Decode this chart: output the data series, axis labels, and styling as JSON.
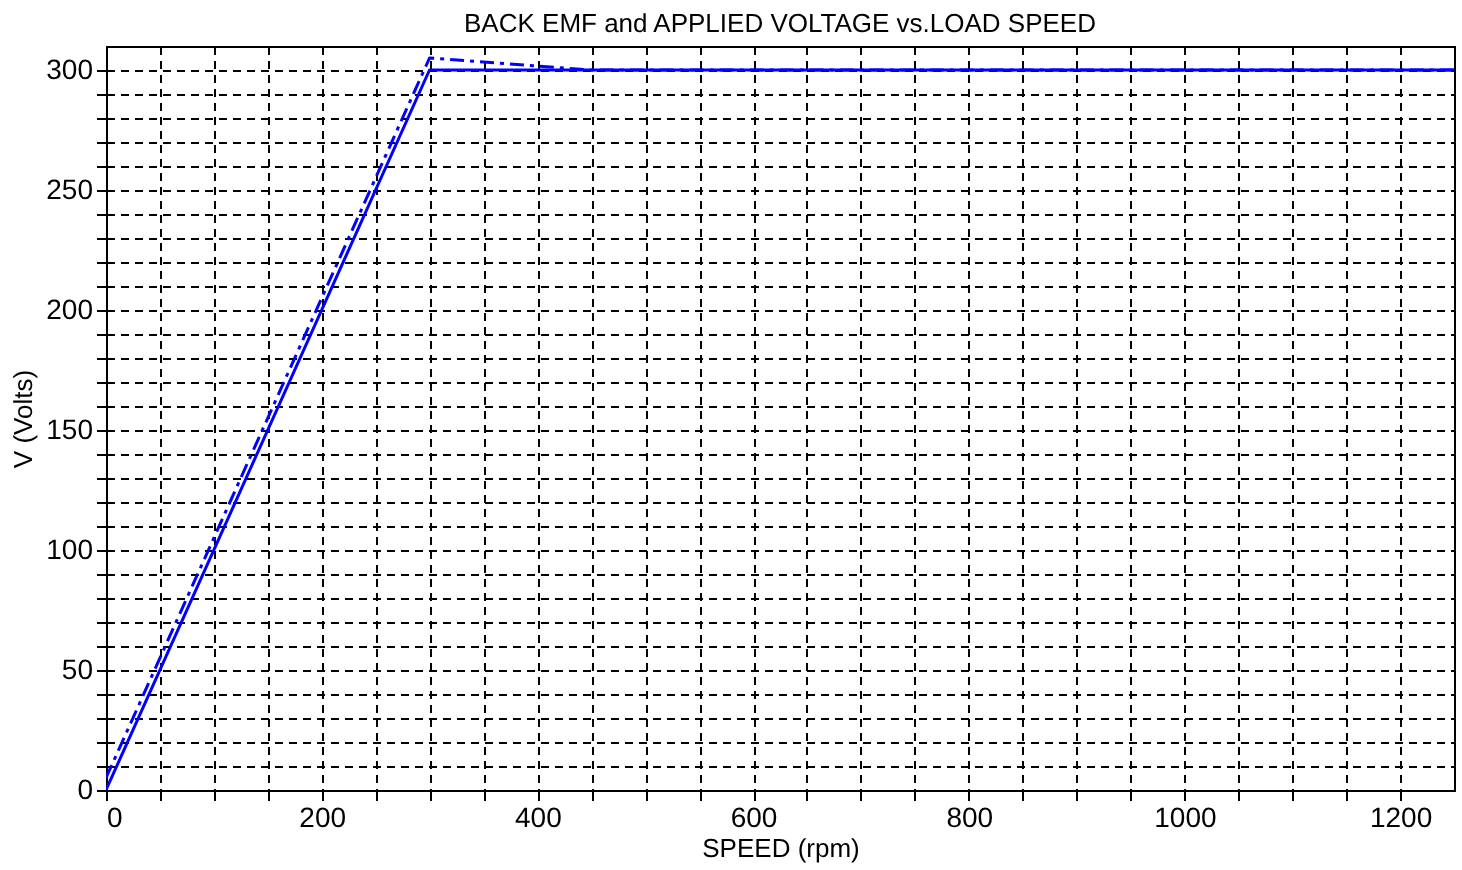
{
  "chart_data": {
    "type": "line",
    "title": "BACK EMF and APPLIED VOLTAGE vs.LOAD SPEED",
    "xlabel": "SPEED (rpm)",
    "ylabel": "V (Volts)",
    "xlim": [
      0,
      1250
    ],
    "ylim": [
      0,
      310
    ],
    "xticks": [
      0,
      {
        "value": 50,
        "label": null
      },
      {
        "value": 100,
        "label": null
      },
      {
        "value": 150,
        "label": null
      },
      200,
      {
        "value": 250,
        "label": null
      },
      {
        "value": 300,
        "label": null
      },
      {
        "value": 350,
        "label": null
      },
      400,
      {
        "value": 450,
        "label": null
      },
      {
        "value": 500,
        "label": null
      },
      {
        "value": 550,
        "label": null
      },
      600,
      {
        "value": 650,
        "label": null
      },
      {
        "value": 700,
        "label": null
      },
      {
        "value": 750,
        "label": null
      },
      800,
      {
        "value": 850,
        "label": null
      },
      {
        "value": 900,
        "label": null
      },
      {
        "value": 950,
        "label": null
      },
      1000,
      {
        "value": 1050,
        "label": null
      },
      {
        "value": 1100,
        "label": null
      },
      {
        "value": 1150,
        "label": null
      },
      1200
    ],
    "yticks": [
      0,
      {
        "value": 10,
        "label": null
      },
      {
        "value": 20,
        "label": null
      },
      {
        "value": 30,
        "label": null
      },
      {
        "value": 40,
        "label": null
      },
      50,
      {
        "value": 60,
        "label": null
      },
      {
        "value": 70,
        "label": null
      },
      {
        "value": 80,
        "label": null
      },
      {
        "value": 90,
        "label": null
      },
      100,
      {
        "value": 110,
        "label": null
      },
      {
        "value": 120,
        "label": null
      },
      {
        "value": 130,
        "label": null
      },
      {
        "value": 140,
        "label": null
      },
      150,
      {
        "value": 160,
        "label": null
      },
      {
        "value": 170,
        "label": null
      },
      {
        "value": 180,
        "label": null
      },
      {
        "value": 190,
        "label": null
      },
      200,
      {
        "value": 210,
        "label": null
      },
      {
        "value": 220,
        "label": null
      },
      {
        "value": 230,
        "label": null
      },
      {
        "value": 240,
        "label": null
      },
      250,
      {
        "value": 260,
        "label": null
      },
      {
        "value": 270,
        "label": null
      },
      {
        "value": 280,
        "label": null
      },
      {
        "value": 290,
        "label": null
      },
      300
    ],
    "grid": true,
    "marker": "none",
    "series": [
      {
        "color": "#0000ff",
        "line_style": "solid",
        "x": [
          0,
          300,
          1250
        ],
        "values": [
          0,
          300,
          300
        ]
      },
      {
        "color": "#0000ff",
        "line_style": "dashed",
        "x": [
          0,
          300,
          450,
          1250
        ],
        "values": [
          5,
          305,
          300,
          300
        ]
      }
    ]
  }
}
